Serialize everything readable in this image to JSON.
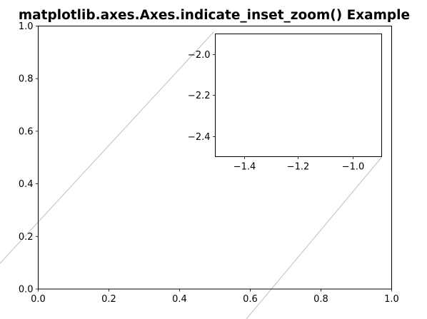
{
  "chart_data": [
    {
      "type": "line",
      "title": "matplotlib.axes.Axes.indicate_inset_zoom() Example",
      "xlabel": "",
      "ylabel": "",
      "xlim": [
        0.0,
        1.0
      ],
      "ylim": [
        0.0,
        1.0
      ],
      "xticks": [
        "0.0",
        "0.2",
        "0.4",
        "0.6",
        "0.8",
        "1.0"
      ],
      "yticks": [
        "0.0",
        "0.2",
        "0.4",
        "0.6",
        "0.8",
        "1.0"
      ],
      "grid": false,
      "series": []
    },
    {
      "type": "line",
      "title": "",
      "xlabel": "",
      "ylabel": "",
      "xlim": [
        -1.5,
        -0.9
      ],
      "ylim": [
        -2.5,
        -1.9
      ],
      "xticks": [
        "−1.4",
        "−1.2",
        "−1.0"
      ],
      "yticks": [
        "−2.4",
        "−2.2",
        "−2.0"
      ],
      "grid": false,
      "series": []
    }
  ],
  "connector_color": "#bfbfbf"
}
